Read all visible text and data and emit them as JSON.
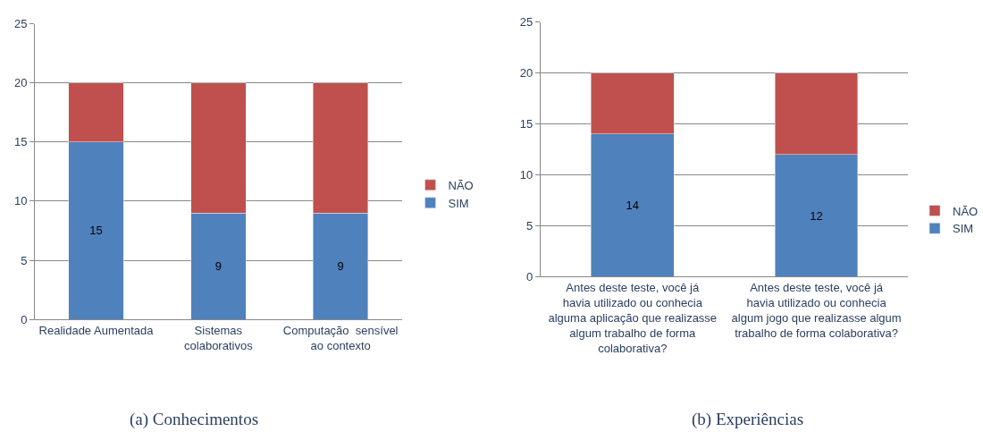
{
  "chart_data": [
    {
      "type": "bar",
      "stacked": true,
      "title": "(a) Conhecimentos",
      "categories": [
        "Realidade Aumentada",
        "Sistemas colaborativos",
        "Computação  sensível ao contexto"
      ],
      "series": [
        {
          "name": "SIM",
          "color": "#4f81bd",
          "values": [
            15,
            9,
            9
          ],
          "value_labels": [
            "15",
            "9",
            "9"
          ]
        },
        {
          "name": "NÃO",
          "color": "#c0504d",
          "values": [
            5,
            11,
            11
          ]
        }
      ],
      "ylim": [
        0,
        25
      ],
      "yticks": [
        0,
        5,
        10,
        15,
        20,
        25
      ],
      "grid": "y",
      "legend": "right"
    },
    {
      "type": "bar",
      "stacked": true,
      "title": "(b) Experiências",
      "categories": [
        "Antes deste teste, você já havia utilizado ou conhecia alguma aplicação que realizasse algum trabalho de forma colaborativa?",
        "Antes deste teste, você já havia utilizado ou conhecia algum jogo que realizasse algum trabalho de forma colaborativa?"
      ],
      "series": [
        {
          "name": "SIM",
          "color": "#4f81bd",
          "values": [
            14,
            12
          ],
          "value_labels": [
            "14",
            "12"
          ]
        },
        {
          "name": "NÃO",
          "color": "#c0504d",
          "values": [
            6,
            8
          ]
        }
      ],
      "ylim": [
        0,
        25
      ],
      "yticks": [
        0,
        5,
        10,
        15,
        20,
        25
      ],
      "grid": "y",
      "legend": "right"
    }
  ]
}
